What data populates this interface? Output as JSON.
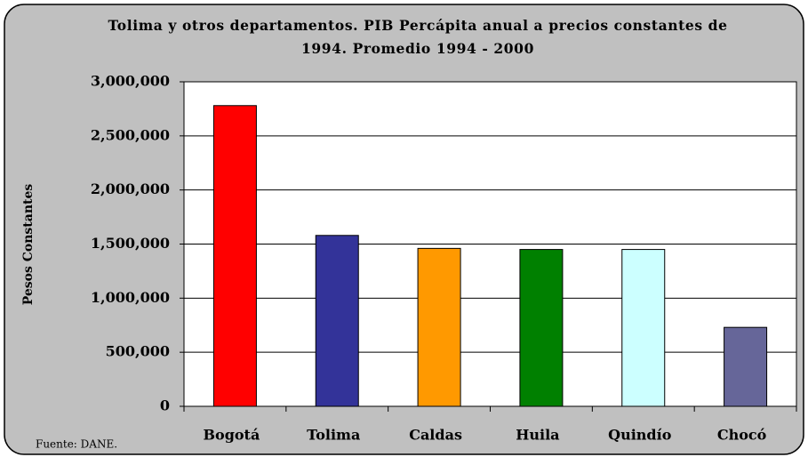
{
  "chart_data": {
    "type": "bar",
    "title": "Tolima y otros departamentos. PIB Percápita anual a precios constantes de 1994. Promedio 1994 - 2000",
    "y_label": "Pesos Constantes",
    "source": "Fuente: DANE.",
    "categories": [
      "Bogotá",
      "Tolima",
      "Caldas",
      "Huila",
      "Quindío",
      "Chocó"
    ],
    "values": [
      2780000,
      1580000,
      1460000,
      1450000,
      1450000,
      730000
    ],
    "colors": [
      "#ff0000",
      "#333399",
      "#ff9900",
      "#008000",
      "#ccffff",
      "#666699"
    ],
    "ylim": [
      0,
      3000000
    ],
    "yticks": [
      0,
      {
        "value": 500000,
        "label": "500,000"
      },
      {
        "value": 1000000,
        "label": "1,000,000"
      },
      {
        "value": 1500000,
        "label": "1,500,000"
      },
      {
        "value": 2000000,
        "label": "2,000,000"
      },
      {
        "value": 2500000,
        "label": "2,500,000"
      },
      {
        "value": 3000000,
        "label": "3,000,000"
      }
    ],
    "grid": true
  }
}
